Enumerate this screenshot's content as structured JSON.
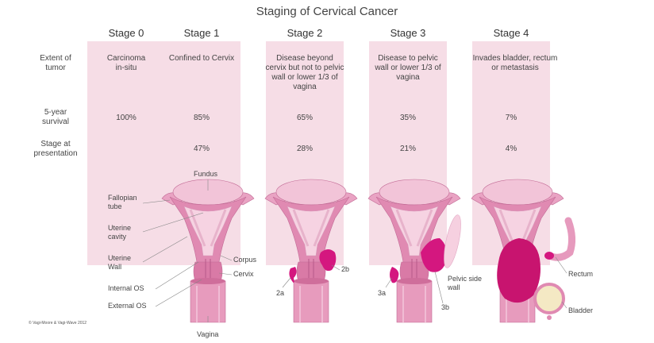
{
  "title": "Staging of Cervical Cancer",
  "row_labels": {
    "extent": "Extent of tumor",
    "survival": "5-year survival",
    "presentation": "Stage at presentation"
  },
  "stages": [
    {
      "name": "Stage 0",
      "extent": "Carcinoma in-situ",
      "survival": "100%",
      "presentation": ""
    },
    {
      "name": "Stage 1",
      "extent": "Confined to Cervix",
      "survival": "85%",
      "presentation": "47%"
    },
    {
      "name": "Stage 2",
      "extent": "Disease beyond cervix but not to pelvic wall or lower 1/3 of vagina",
      "survival": "65%",
      "presentation": "28%"
    },
    {
      "name": "Stage 3",
      "extent": "Disease to pelvic wall or lower 1/3 of vagina",
      "survival": "35%",
      "presentation": "21%"
    },
    {
      "name": "Stage 4",
      "extent": "Invades bladder, rectum or metastasis",
      "survival": "7%",
      "presentation": "4%"
    }
  ],
  "anatomy_labels": {
    "fundus": "Fundus",
    "fallopian_tube": "Fallopian tube",
    "uterine_cavity": "Uterine cavity",
    "uterine_wall": "Uterine Wall",
    "internal_os": "Internal OS",
    "external_os": "External OS",
    "corpus": "Corpus",
    "cervix": "Cervix",
    "vagina": "Vagina",
    "label_2a": "2a",
    "label_2b": "2b",
    "label_3a": "3a",
    "label_3b": "3b",
    "pelvic_side_wall": "Pelvic side wall",
    "rectum": "Rectum",
    "bladder": "Bladder"
  },
  "copyright": "© Vagi-Moore & Vagi-Wave 2012",
  "colors": {
    "column_bg": "#f6dde6",
    "uterus": "#e08ab2",
    "uterus_light": "#f2c4d8",
    "tumor": "#d4177f"
  }
}
